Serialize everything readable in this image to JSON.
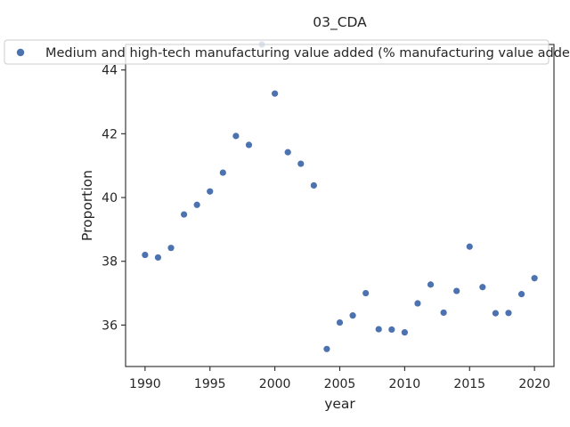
{
  "chart_data": {
    "type": "scatter",
    "title": "03_CDA",
    "xlabel": "year",
    "ylabel": "Proportion",
    "xlim": [
      1988.5,
      2021.5
    ],
    "ylim": [
      34.7,
      44.8
    ],
    "xticks": [
      1990,
      1995,
      2000,
      2005,
      2010,
      2015,
      2020
    ],
    "yticks": [
      36,
      38,
      40,
      42,
      44
    ],
    "grid": false,
    "legend_position": "top",
    "series": [
      {
        "name": "Medium and high-tech manufacturing value added (% manufacturing value added)",
        "color": "#4c72b0",
        "points": [
          {
            "x": 1990,
            "y": 38.2
          },
          {
            "x": 1991,
            "y": 38.12
          },
          {
            "x": 1992,
            "y": 38.42
          },
          {
            "x": 1993,
            "y": 39.47
          },
          {
            "x": 1994,
            "y": 39.77
          },
          {
            "x": 1995,
            "y": 40.19
          },
          {
            "x": 1996,
            "y": 40.78
          },
          {
            "x": 1997,
            "y": 41.93
          },
          {
            "x": 1998,
            "y": 41.65
          },
          {
            "x": 1999,
            "y": 44.8
          },
          {
            "x": 2000,
            "y": 43.26
          },
          {
            "x": 2001,
            "y": 41.42
          },
          {
            "x": 2002,
            "y": 41.06
          },
          {
            "x": 2003,
            "y": 40.38
          },
          {
            "x": 2004,
            "y": 35.25
          },
          {
            "x": 2005,
            "y": 36.08
          },
          {
            "x": 2006,
            "y": 36.3
          },
          {
            "x": 2007,
            "y": 37.0
          },
          {
            "x": 2008,
            "y": 35.87
          },
          {
            "x": 2009,
            "y": 35.86
          },
          {
            "x": 2010,
            "y": 35.77
          },
          {
            "x": 2011,
            "y": 36.68
          },
          {
            "x": 2012,
            "y": 37.27
          },
          {
            "x": 2013,
            "y": 36.39
          },
          {
            "x": 2014,
            "y": 37.07
          },
          {
            "x": 2015,
            "y": 38.46
          },
          {
            "x": 2016,
            "y": 37.19
          },
          {
            "x": 2017,
            "y": 36.37
          },
          {
            "x": 2018,
            "y": 36.38
          },
          {
            "x": 2019,
            "y": 36.97
          },
          {
            "x": 2020,
            "y": 37.47
          }
        ]
      }
    ]
  }
}
